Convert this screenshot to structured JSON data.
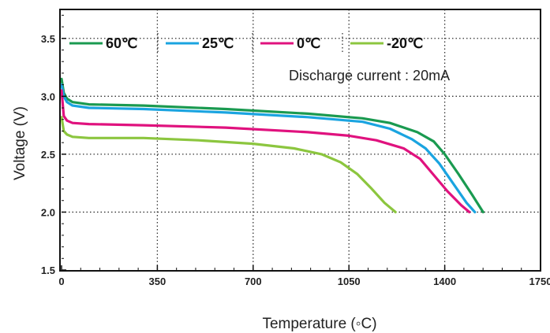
{
  "chart_data": {
    "type": "line",
    "title": "",
    "xlabel": "Temperature (◦C)",
    "ylabel": "Voltage (V)",
    "xlim": [
      0,
      1750
    ],
    "ylim": [
      1.5,
      3.75
    ],
    "xticks": [
      0,
      350,
      700,
      1050,
      1400,
      1750
    ],
    "xtick_labels": [
      "0",
      "350",
      "700",
      "1050",
      "1400",
      "1750"
    ],
    "yticks": [
      1.5,
      2.0,
      2.5,
      3.0,
      3.5
    ],
    "ytick_labels": [
      "1.5",
      "2.0",
      "2.5",
      "3.0",
      "3.5"
    ],
    "grid": "dotted",
    "legend": "top",
    "annotation": "Discharge current : 20mA",
    "series": [
      {
        "name": "60℃",
        "color": "#1a9a50",
        "x": [
          0,
          8,
          20,
          40,
          100,
          300,
          600,
          900,
          1100,
          1200,
          1300,
          1360,
          1400,
          1450,
          1500,
          1540
        ],
        "y": [
          3.15,
          3.03,
          2.98,
          2.95,
          2.93,
          2.92,
          2.89,
          2.85,
          2.81,
          2.77,
          2.69,
          2.61,
          2.5,
          2.33,
          2.15,
          2.0
        ]
      },
      {
        "name": "25℃",
        "color": "#1aa4e0",
        "x": [
          0,
          8,
          20,
          40,
          100,
          300,
          600,
          900,
          1100,
          1200,
          1280,
          1330,
          1380,
          1430,
          1480,
          1510
        ],
        "y": [
          3.1,
          3.0,
          2.95,
          2.92,
          2.9,
          2.89,
          2.86,
          2.82,
          2.78,
          2.72,
          2.63,
          2.55,
          2.42,
          2.25,
          2.08,
          2.0
        ]
      },
      {
        "name": "0℃",
        "color": "#e0127e",
        "x": [
          0,
          8,
          20,
          40,
          100,
          300,
          600,
          900,
          1050,
          1150,
          1250,
          1310,
          1360,
          1410,
          1460,
          1490
        ],
        "y": [
          3.05,
          2.83,
          2.79,
          2.77,
          2.76,
          2.75,
          2.73,
          2.69,
          2.66,
          2.62,
          2.55,
          2.46,
          2.32,
          2.18,
          2.06,
          2.0
        ]
      },
      {
        "name": "-20℃",
        "color": "#8cc63f",
        "x": [
          0,
          8,
          20,
          40,
          100,
          300,
          500,
          700,
          850,
          950,
          1020,
          1080,
          1130,
          1180,
          1220
        ],
        "y": [
          2.82,
          2.7,
          2.67,
          2.65,
          2.64,
          2.64,
          2.62,
          2.59,
          2.55,
          2.5,
          2.43,
          2.33,
          2.21,
          2.08,
          2.0
        ]
      }
    ]
  }
}
